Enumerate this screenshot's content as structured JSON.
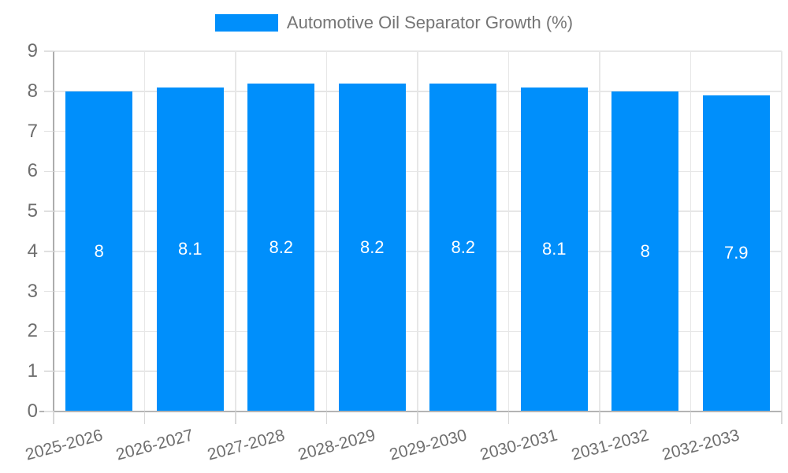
{
  "legend": {
    "items": [
      {
        "label": "Automotive Oil Separator Growth (%)",
        "color": "#008FFB"
      }
    ]
  },
  "chart_data": {
    "type": "bar",
    "title": "Automotive Oil Separator Growth (%)",
    "categories": [
      "2025-2026",
      "2026-2027",
      "2027-2028",
      "2028-2029",
      "2029-2030",
      "2030-2031",
      "2031-2032",
      "2032-2033"
    ],
    "series": [
      {
        "name": "Automotive Oil Separator Growth (%)",
        "values": [
          8,
          8.1,
          8.2,
          8.2,
          8.2,
          8.1,
          8,
          7.9
        ],
        "color": "#008FFB"
      }
    ],
    "value_labels": [
      "8",
      "8.1",
      "8.2",
      "8.2",
      "8.2",
      "8.1",
      "8",
      "7.9"
    ],
    "xlabel": "",
    "ylabel": "",
    "ylim": [
      0,
      9
    ],
    "ytick_step": 1,
    "ytick_labels": [
      "0",
      "1",
      "2",
      "3",
      "4",
      "5",
      "6",
      "7",
      "8",
      "9"
    ],
    "grid": true,
    "legend_position": "top",
    "x_label_rotation_deg": -15,
    "colors": {
      "bar": "#008FFB",
      "data_label": "#ffffff",
      "axis_label": "#6e6e6e",
      "legend_label": "#757575",
      "gridline": "#e7e7e7",
      "axis_line": "#b3b3b3",
      "background": "#ffffff"
    }
  }
}
